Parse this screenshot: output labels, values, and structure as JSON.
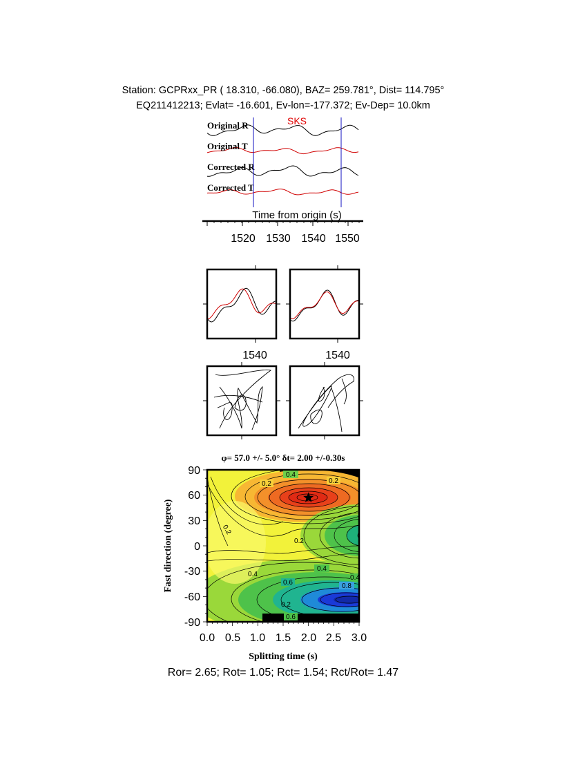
{
  "header": {
    "line1": "Station: GCPRxx_PR (  18.310,  -66.080), BAZ=  259.781°, Dist=  114.795°",
    "line2": "EQ211412213; Evlat= -16.601, Ev-lon=-177.372; Ev-Dep= 10.0km"
  },
  "traces": {
    "phase_label": "SKS",
    "labels": [
      "Original R",
      "Original T",
      "Corrected R",
      "Corrected T"
    ],
    "xlabel": "Time from origin (s)",
    "xticks": [
      "1520",
      "1530",
      "1540",
      "1550"
    ],
    "window_marks": [
      1523,
      1548
    ]
  },
  "particle": {
    "wave_tick_left": "1540",
    "wave_tick_right": "1540"
  },
  "grid": {
    "title": "φ= 57.0 +/- 5.0° δt= 2.00 +/-0.30s",
    "xlabel": "Splitting time (s)",
    "ylabel": "Fast direction (degree)",
    "xticks": [
      "0.0",
      "0.5",
      "1.0",
      "1.5",
      "2.0",
      "2.5",
      "3.0"
    ],
    "yticks": [
      "90",
      "60",
      "30",
      "0",
      "-30",
      "-60",
      "-90"
    ],
    "contour_labels": [
      "0.4",
      "0.2",
      "0.2",
      "0.2",
      "0.2",
      "0.4",
      "0.4",
      "0.6",
      "0.8",
      "0.6",
      "0.2",
      "0.4"
    ],
    "best": {
      "dt": 2.0,
      "phi": 57.0
    }
  },
  "footer": {
    "ratios": "Ror= 2.65; Rot= 1.05; Rct= 1.54; Rct/Rot= 1.47"
  },
  "chart_data": {
    "type": "heatmap",
    "title": "φ= 57.0 +/- 5.0° δt= 2.00 +/-0.30s",
    "xlabel": "Splitting time (s)",
    "ylabel": "Fast direction (degree)",
    "xlim": [
      0,
      3
    ],
    "ylim": [
      -90,
      90
    ],
    "best_fit": {
      "splitting_time_s": 2.0,
      "fast_direction_deg": 57.0,
      "phi_error": 5.0,
      "dt_error": 0.3
    },
    "contour_levels": [
      0.2,
      0.4,
      0.6,
      0.8
    ]
  }
}
